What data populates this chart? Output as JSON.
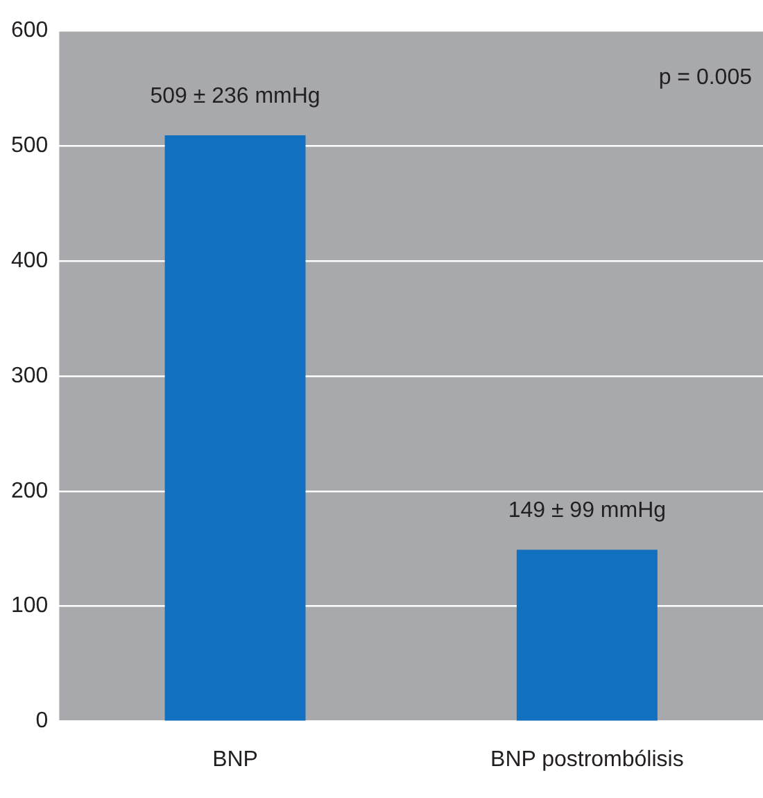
{
  "chart_data": {
    "type": "bar",
    "categories": [
      "BNP",
      "BNP postrombólisis"
    ],
    "values": [
      509,
      149
    ],
    "value_labels": [
      "509 ± 236 mmHg",
      "149 ± 99 mmHg"
    ],
    "color": "#1170bf",
    "ylim": [
      0,
      600
    ],
    "yticks": [
      0,
      100,
      200,
      300,
      400,
      500,
      600
    ],
    "grid": "y",
    "annotations": [
      "p = 0.005"
    ]
  }
}
